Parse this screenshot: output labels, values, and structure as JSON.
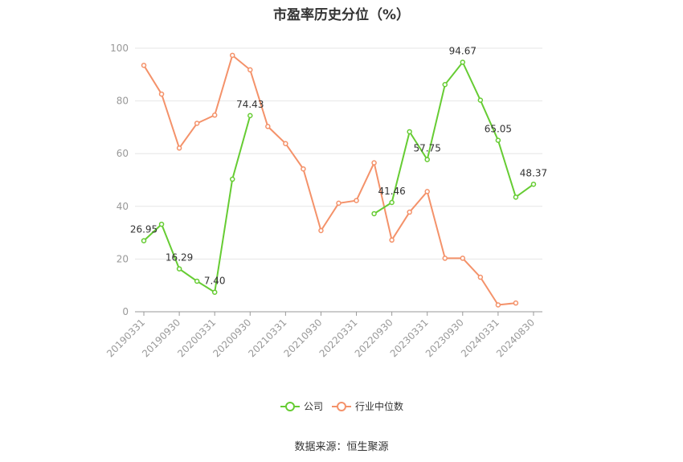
{
  "title": "市盈率历史分位（%）",
  "source": "数据来源：恒生聚源",
  "colors": {
    "company": "#66cc33",
    "industry": "#f4926a",
    "grid": "#e6e6e6",
    "axis": "#999999"
  },
  "chart_data": {
    "type": "line",
    "title": "市盈率历史分位（%）",
    "ylim": [
      0,
      100
    ],
    "yticks": [
      0,
      20,
      40,
      60,
      80,
      100
    ],
    "grid": true,
    "legend_position": "bottom",
    "x_tick_labels": [
      "20190331",
      "20190930",
      "20200331",
      "20200930",
      "20210331",
      "20210930",
      "20220331",
      "20220930",
      "20230331",
      "20230930",
      "20240331",
      "20240830"
    ],
    "x": [
      "20190331",
      "",
      "20190930",
      "",
      "20200331",
      "",
      "20200930",
      "",
      "20210331",
      "",
      "20210930",
      "",
      "20220331",
      "",
      "20220930",
      "",
      "20230331",
      "",
      "20230930",
      "",
      "20240331",
      "",
      "20240830"
    ],
    "series": [
      {
        "name": "公司",
        "color": "#66cc33",
        "values": [
          26.95,
          33.2,
          16.29,
          11.6,
          7.4,
          50.3,
          74.43,
          null,
          null,
          null,
          null,
          null,
          null,
          37.2,
          41.46,
          68.3,
          57.75,
          86.2,
          94.67,
          80.3,
          65.05,
          43.5,
          48.37
        ]
      },
      {
        "name": "行业中位数",
        "color": "#f4926a",
        "values": [
          93.5,
          82.6,
          62.1,
          71.5,
          74.6,
          97.3,
          91.8,
          70.3,
          63.8,
          54.2,
          30.8,
          41.2,
          42.2,
          56.5,
          27.2,
          37.8,
          45.6,
          20.3,
          20.3,
          13.1,
          2.6,
          3.3,
          null
        ]
      }
    ],
    "data_labels": [
      {
        "series": 0,
        "index": 0,
        "text": "26.95"
      },
      {
        "series": 0,
        "index": 2,
        "text": "16.29"
      },
      {
        "series": 0,
        "index": 4,
        "text": "7.40"
      },
      {
        "series": 0,
        "index": 6,
        "text": "74.43"
      },
      {
        "series": 0,
        "index": 14,
        "text": "41.46"
      },
      {
        "series": 0,
        "index": 16,
        "text": "57.75"
      },
      {
        "series": 0,
        "index": 18,
        "text": "94.67"
      },
      {
        "series": 0,
        "index": 20,
        "text": "65.05"
      },
      {
        "series": 0,
        "index": 22,
        "text": "48.37"
      }
    ]
  }
}
